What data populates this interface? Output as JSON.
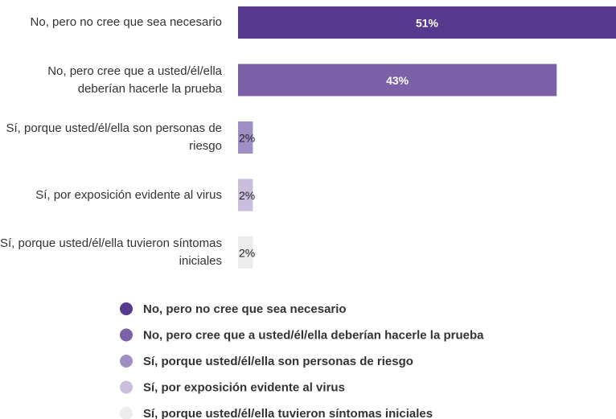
{
  "chart_data": {
    "type": "bar",
    "orientation": "horizontal",
    "categories": [
      "No, pero no cree que sea necesario",
      "No, pero cree que a usted/él/ella deberían hacerle la prueba",
      "Sí, porque usted/él/ella son personas de riesgo",
      "Sí, por exposición evidente al virus",
      "Sí, porque usted/él/ella tuvieron síntomas iniciales"
    ],
    "values": [
      51,
      43,
      2,
      2,
      2
    ],
    "value_labels": [
      "51%",
      "43%",
      "2%",
      "2%",
      "2%"
    ],
    "colors": [
      "#563a8e",
      "#7b62a8",
      "#a08fc4",
      "#c9bfdd",
      "#ececec"
    ],
    "legend": true
  }
}
